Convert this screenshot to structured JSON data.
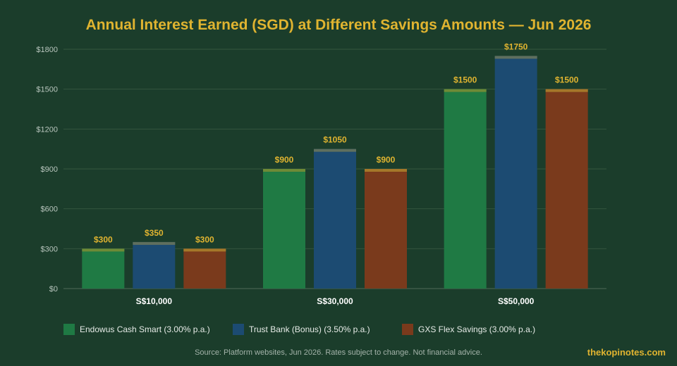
{
  "title": "Annual Interest Earned (SGD) at Different Savings Amounts — Jun 2026",
  "source": "Source: Platform websites, Jun 2026. Rates subject to change. Not financial advice.",
  "brand": "thekopinotes.com",
  "chart_data": {
    "type": "bar",
    "title": "Annual Interest Earned (SGD) at Different Savings Amounts — Jun 2026",
    "xlabel": "",
    "ylabel": "",
    "categories": [
      "S$10,000",
      "S$30,000",
      "S$50,000"
    ],
    "ylim": [
      0,
      1800
    ],
    "yticks": [
      0,
      300,
      600,
      900,
      1200,
      1500,
      1800
    ],
    "ytick_labels": [
      "$0",
      "$300",
      "$600",
      "$900",
      "$1200",
      "$1500",
      "$1800"
    ],
    "grid": true,
    "legend_position": "bottom",
    "series": [
      {
        "name": "Endowus Cash Smart (3.00% p.a.)",
        "values": [
          300,
          900,
          1500
        ],
        "labels": [
          "$300",
          "$900",
          "$1500"
        ],
        "color": "#1f7a44",
        "cap_color": "#6e8a36"
      },
      {
        "name": "Trust Bank (Bonus) (3.50% p.a.)",
        "values": [
          350,
          1050,
          1750
        ],
        "labels": [
          "$350",
          "$1050",
          "$1750"
        ],
        "color": "#1c4b72",
        "cap_color": "#5f6f5e"
      },
      {
        "name": "GXS Flex Savings (3.00% p.a.)",
        "values": [
          300,
          900,
          1500
        ],
        "labels": [
          "$300",
          "$900",
          "$1500"
        ],
        "color": "#7a3a1c",
        "cap_color": "#a5782a"
      }
    ],
    "value_label_color": "#e0b430"
  }
}
